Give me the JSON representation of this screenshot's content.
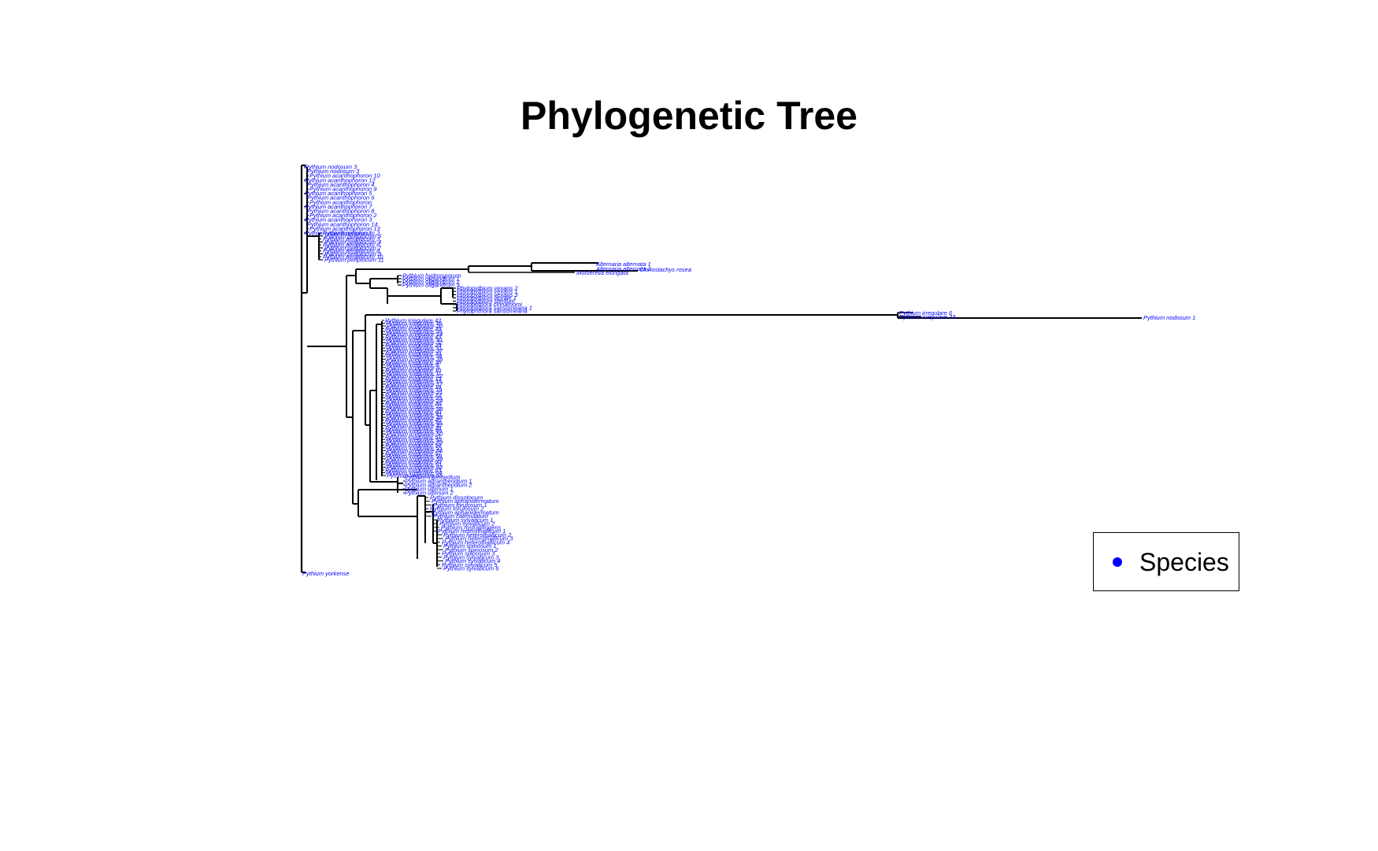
{
  "title": "Phylogenetic Tree",
  "colors": {
    "branch": "#000000",
    "tip_label": "#0000ff",
    "legend_marker": "#0000ff"
  },
  "legend": {
    "label": "Species",
    "position": "bottom-right"
  },
  "tips": {
    "top_group": [
      "Pythium nodosum 3",
      "Pythium nodosum 3",
      "Pythium acanthophoron 10",
      "Pythium acanthophoron 12",
      "Pythium acanthophoron 4",
      "Pythium acanthophoron 9",
      "Pythium acanthophoron 5",
      "Pythium acanthophoron 6",
      "Pythium acanthophoron",
      "Pythium acanthophoron 7",
      "Pythium acanthophoron 8",
      "Pythium acanthophoron 2",
      "Pythium acanthophoron 3",
      "Pythium acanthophoron 14",
      "Pythium acanthophoron 13",
      "Pythium acanthophoron 1",
      "Pythium periplocum 2",
      "Pythium periplocum 5",
      "Pythium periplocum 3",
      "Pythium periplocum 4",
      "Pythium periplocum 6",
      "Pythium periplocum 7",
      "Pythium periplocum 8",
      "Pythium periplocum 9",
      "Pythium periplocum 10",
      "Pythium periplocum 11"
    ],
    "alternaria": [
      "Alternaria alternata 1",
      "Alternaria alternata 2",
      "Clonostachys rosea"
    ],
    "mortierella": "Mortierella elongata",
    "pythium_mid": [
      "Pythium hydnosporum",
      "Pythium oligandrum 1",
      "Pythium oligandrum 2",
      "Pythium oligandrum 3"
    ],
    "phytopythium": [
      "Phytopythium vexans 2",
      "Phytopythium vexans 1",
      "Phytopythium vexans 3",
      "Phytopythium litorale 1",
      "Phytopythium sterilum",
      "Phytophthora cinnamomi",
      "Phytophthora sansomeana 1",
      "Phytophthora sansomeana"
    ],
    "long_branch": [
      "Pythium irregulare 6",
      "Pythium irregulare 33"
    ],
    "long_tip": "Pythium nodosum 1",
    "irregulare_group": [
      "Pythium irregulare 42",
      "Pythium irregulare 16",
      "Pythium irregulare 20",
      "Pythium irregulare 25",
      "Pythium irregulare 28",
      "Pythium irregulare 14",
      "Pythium irregulare 43",
      "Pythium irregulare 30",
      "Pythium irregulare 32",
      "Pythium irregulare 29",
      "Pythium irregulare 31",
      "Pythium irregulare 37",
      "Pythium irregulare 39",
      "Pythium irregulare 34",
      "Pythium irregulare 35",
      "Pythium irregulare 36",
      "Pythium irregulare 8",
      "Pythium irregulare 9",
      "Pythium irregulare 10",
      "Pythium irregulare 11",
      "Pythium irregulare 12",
      "Pythium irregulare 13",
      "Pythium irregulare 15",
      "Pythium irregulare 17",
      "Pythium irregulare 18",
      "Pythium irregulare 19",
      "Pythium irregulare 21",
      "Pythium irregulare 22",
      "Pythium irregulare 23",
      "Pythium irregulare 24",
      "Pythium irregulare 26",
      "Pythium irregulare 27",
      "Pythium irregulare 38",
      "Pythium irregulare 40",
      "Pythium irregulare 41",
      "Pythium irregulare 44",
      "Pythium irregulare 45",
      "Pythium irregulare 46",
      "Pythium irregulare 47",
      "Pythium irregulare 48",
      "Pythium irregulare 49",
      "Pythium irregulare 50",
      "Pythium irregulare 51",
      "Pythium irregulare 52",
      "Pythium irregulare 53",
      "Pythium irregulare 54",
      "Pythium irregulare 55",
      "Pythium irregulare 56",
      "Pythium irregulare 57",
      "Pythium irregulare 58",
      "Pythium irregulare 59",
      "Pythium irregulare 60",
      "Pythium irregulare 61",
      "Pythium irregulare 62",
      "Pythium irregulare 63",
      "Pythium irregulare 64",
      "Pythium irregulare 65"
    ],
    "intermedium_group": [
      "Pythium intermedium",
      "Pythium attrantheridium 1",
      "Pythium attrantheridium 2",
      "Pythium ultimum 1",
      "Pythium ultimum 2"
    ],
    "lower_group": [
      "Pythium dissotocum",
      "Pythium aphanidermatum",
      "Pythium torulosum 1",
      "Pythium torulosum 2",
      "Pythium aphanidermatum",
      "Pythium catenulatum",
      "Pythium sylvaticum 1",
      "Pythium sylvaticum 2",
      "Pythium rostratifingens",
      "Pythium heterothallicum 1",
      "Pythium heterothallicum 2",
      "Pythium heterothallicum 3",
      "Pythium heterothallicum 4",
      "Pythium spinosum 1",
      "Pythium spinosum 2",
      "Pythium spinosum 3",
      "Pythium sylvaticum 3",
      "Pythium sylvaticum 4",
      "Pythium sylvaticum 5",
      "Pythium sylvaticum 6"
    ],
    "outgroup": "Pythium yorkense"
  }
}
